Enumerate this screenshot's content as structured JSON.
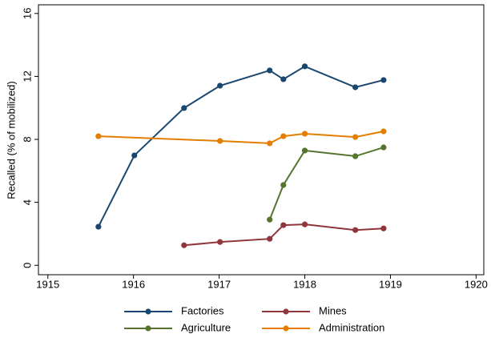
{
  "chart_data": {
    "type": "line",
    "y_label": "Recalled (% of mobilized)",
    "xlim": [
      1914.89,
      1920.09
    ],
    "xticks": [
      1915,
      1916,
      1917,
      1918,
      1919,
      1920
    ],
    "ylim": [
      -0.6,
      16.55
    ],
    "yticks": [
      0,
      4,
      8,
      12,
      16
    ],
    "legend": "bottom",
    "series": [
      {
        "name": "Factories",
        "color": "#1a476f",
        "x": [
          1915.59,
          1916.01,
          1916.59,
          1917.01,
          1917.59,
          1917.75,
          1918.0,
          1918.59,
          1918.92
        ],
        "values": [
          2.45,
          6.98,
          9.99,
          11.41,
          12.38,
          11.82,
          12.64,
          11.31,
          11.77
        ]
      },
      {
        "name": "Mines",
        "color": "#90353b",
        "x": [
          1916.59,
          1917.01,
          1917.59,
          1917.75,
          1918.0,
          1918.59,
          1918.92
        ],
        "values": [
          1.27,
          1.48,
          1.68,
          2.55,
          2.6,
          2.24,
          2.34
        ]
      },
      {
        "name": "Agriculture",
        "color": "#55752f",
        "x": [
          1917.59,
          1917.75,
          1918.0,
          1918.59,
          1918.92
        ],
        "values": [
          2.9,
          5.1,
          7.29,
          6.93,
          7.49
        ]
      },
      {
        "name": "Administration",
        "color": "#e37e00",
        "x": [
          1915.59,
          1917.01,
          1917.59,
          1917.75,
          1918.0,
          1918.59,
          1918.92
        ],
        "values": [
          8.2,
          7.9,
          7.75,
          8.2,
          8.36,
          8.15,
          8.51
        ]
      }
    ]
  }
}
